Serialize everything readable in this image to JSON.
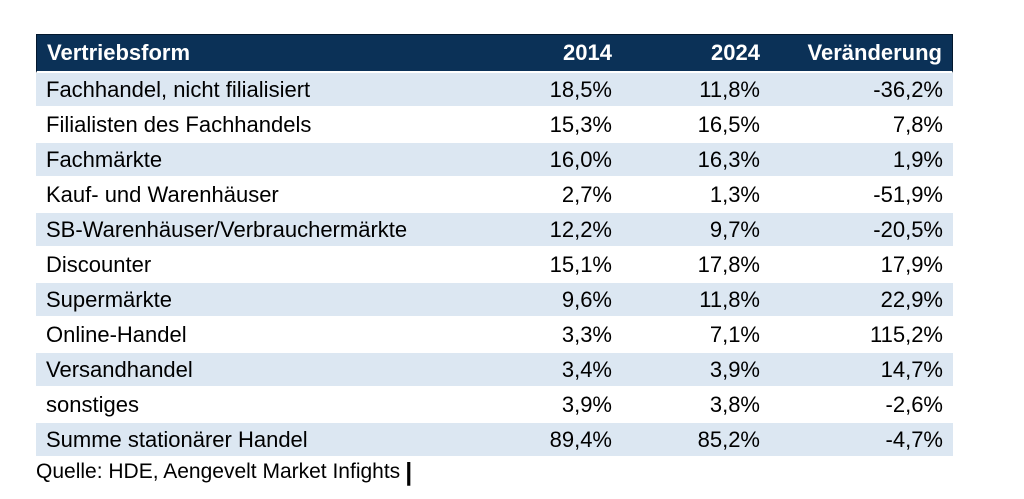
{
  "chart_data": {
    "type": "table",
    "columns": [
      "Vertriebsform",
      "2014",
      "2024",
      "Veränderung"
    ],
    "rows": [
      [
        "Fachhandel, nicht filialisiert",
        "18,5%",
        "11,8%",
        "-36,2%"
      ],
      [
        "Filialisten des Fachhandels",
        "15,3%",
        "16,5%",
        "7,8%"
      ],
      [
        "Fachmärkte",
        "16,0%",
        "16,3%",
        "1,9%"
      ],
      [
        "Kauf- und Warenhäuser",
        "2,7%",
        "1,3%",
        "-51,9%"
      ],
      [
        "SB-Warenhäuser/Verbrauchermärkte",
        "12,2%",
        "9,7%",
        "-20,5%"
      ],
      [
        "Discounter",
        "15,1%",
        "17,8%",
        "17,9%"
      ],
      [
        "Supermärkte",
        "9,6%",
        "11,8%",
        "22,9%"
      ],
      [
        "Online-Handel",
        "3,3%",
        "7,1%",
        "115,2%"
      ],
      [
        "Versandhandel",
        "3,4%",
        "3,9%",
        "14,7%"
      ],
      [
        "sonstiges",
        "3,9%",
        "3,8%",
        "-2,6%"
      ],
      [
        "Summe stationärer Handel",
        "89,4%",
        "85,2%",
        "-4,7%"
      ]
    ],
    "categories": [
      "Fachhandel, nicht filialisiert",
      "Filialisten des Fachhandels",
      "Fachmärkte",
      "Kauf- und Warenhäuser",
      "SB-Warenhäuser/Verbrauchermärkte",
      "Discounter",
      "Supermärkte",
      "Online-Handel",
      "Versandhandel",
      "sonstiges",
      "Summe stationärer Handel"
    ],
    "series": [
      {
        "name": "2014",
        "unit": "%",
        "values": [
          18.5,
          15.3,
          16.0,
          2.7,
          12.2,
          15.1,
          9.6,
          3.3,
          3.4,
          3.9,
          89.4
        ]
      },
      {
        "name": "2024",
        "unit": "%",
        "values": [
          11.8,
          16.5,
          16.3,
          1.3,
          9.7,
          17.8,
          11.8,
          7.1,
          3.9,
          3.8,
          85.2
        ]
      },
      {
        "name": "Veränderung",
        "unit": "%",
        "values": [
          -36.2,
          7.8,
          1.9,
          -51.9,
          -20.5,
          17.9,
          22.9,
          115.2,
          14.7,
          -2.6,
          -4.7
        ]
      }
    ],
    "layout_hints": {
      "striped_rows": "odd data rows highlighted",
      "value_alignment": "right",
      "label_alignment": "left"
    }
  },
  "footer": {
    "source": "Quelle: HDE, Aengevelt Market Infights",
    "cursor": "|"
  },
  "colors": {
    "header_bg": "#0b3157",
    "header_text": "#ffffff",
    "row_alt_bg": "#dce7f2",
    "row_bg": "#ffffff",
    "text": "#000000"
  }
}
